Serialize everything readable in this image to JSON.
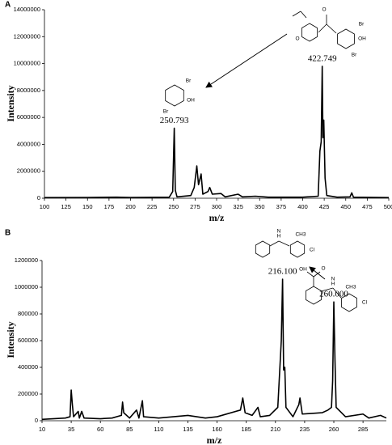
{
  "chart_data": [
    {
      "type": "line",
      "panel": "A",
      "xlabel": "m/z",
      "ylabel": "Intensity",
      "color": "#000000",
      "xlim": [
        100,
        500
      ],
      "xticks": [
        100,
        125,
        150,
        175,
        200,
        225,
        250,
        275,
        300,
        325,
        350,
        375,
        400,
        425,
        450,
        475,
        500
      ],
      "ylim": [
        0,
        14000000
      ],
      "yticks": [
        0,
        2000000,
        4000000,
        6000000,
        8000000,
        10000000,
        12000000,
        14000000
      ],
      "x": [
        100,
        150,
        184,
        200,
        245,
        249,
        250.8,
        252,
        254,
        270,
        274,
        277,
        279,
        282,
        284,
        290,
        292,
        295,
        305,
        310,
        325,
        330,
        345,
        360,
        400,
        418,
        420,
        421.5,
        422.7,
        423.5,
        424.5,
        426,
        428,
        440,
        455,
        457,
        459,
        500
      ],
      "values": [
        50000,
        60000,
        80000,
        60000,
        80000,
        500000,
        5200000,
        600000,
        100000,
        200000,
        800000,
        2400000,
        1000000,
        1800000,
        300000,
        500000,
        800000,
        300000,
        350000,
        100000,
        300000,
        100000,
        150000,
        80000,
        80000,
        150000,
        3500000,
        4200000,
        9800000,
        4500000,
        5800000,
        1500000,
        200000,
        80000,
        100000,
        400000,
        80000,
        50000
      ],
      "annotations": [
        {
          "text": "250.793",
          "x": 250.793,
          "y": 5200000
        },
        {
          "text": "422.749",
          "x": 422.749,
          "y": 9800000
        }
      ],
      "structure_labels": [
        "Br",
        "OH",
        "Br",
        "O",
        "O",
        "Br",
        "OH",
        "Br"
      ]
    },
    {
      "type": "line",
      "panel": "B",
      "xlabel": "m/z",
      "ylabel": "Intensity",
      "color": "#000000",
      "xlim": [
        10,
        305
      ],
      "xticks": [
        10,
        35,
        60,
        85,
        110,
        135,
        160,
        185,
        210,
        235,
        260,
        285
      ],
      "ylim": [
        0,
        1200000
      ],
      "yticks": [
        0,
        200000,
        400000,
        600000,
        800000,
        1000000,
        1200000
      ],
      "x": [
        10,
        30,
        34,
        35,
        36,
        37,
        41,
        42,
        44,
        46,
        60,
        70,
        78,
        79,
        80,
        85,
        91,
        93,
        96,
        97,
        110,
        135,
        150,
        160,
        180,
        182,
        184,
        190,
        195,
        197,
        205,
        212,
        215,
        216.1,
        217,
        218,
        219,
        225,
        230,
        231,
        233,
        250,
        255,
        258,
        259,
        260,
        261,
        262,
        270,
        285,
        290,
        300,
        305
      ],
      "values": [
        10000,
        20000,
        30000,
        230000,
        120000,
        30000,
        70000,
        20000,
        70000,
        20000,
        15000,
        20000,
        40000,
        140000,
        60000,
        20000,
        80000,
        20000,
        150000,
        30000,
        20000,
        40000,
        20000,
        30000,
        80000,
        170000,
        60000,
        40000,
        100000,
        30000,
        40000,
        100000,
        600000,
        1060000,
        380000,
        400000,
        100000,
        30000,
        120000,
        170000,
        50000,
        60000,
        80000,
        100000,
        300000,
        890000,
        450000,
        100000,
        30000,
        50000,
        20000,
        40000,
        20000
      ],
      "annotations": [
        {
          "text": "216.100",
          "x": 216.1,
          "y": 1060000
        },
        {
          "text": "260.000",
          "x": 260,
          "y": 890000
        }
      ],
      "structure_labels": [
        "H",
        "N",
        "CH3",
        "Cl",
        "OH",
        "O",
        "H",
        "N",
        "CH3",
        "Cl"
      ]
    }
  ]
}
